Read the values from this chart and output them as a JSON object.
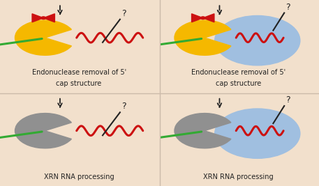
{
  "bg_color": "#f2e0cc",
  "pacman_color_top": "#f5b800",
  "pacman_color_bottom": "#909090",
  "circle_color": "#a0bfe0",
  "orange_dot_color": "#e86010",
  "star_color": "#cc1111",
  "green_line_color": "#33aa33",
  "red_wave_color": "#cc1111",
  "arrow_color": "#222222",
  "text_top": [
    "Endonuclease removal of 5'",
    "cap structure"
  ],
  "text_bottom": "XRN RNA processing",
  "label_fontsize": 7.0,
  "line_width": 2.2,
  "divider_color": "#ccbbaa"
}
